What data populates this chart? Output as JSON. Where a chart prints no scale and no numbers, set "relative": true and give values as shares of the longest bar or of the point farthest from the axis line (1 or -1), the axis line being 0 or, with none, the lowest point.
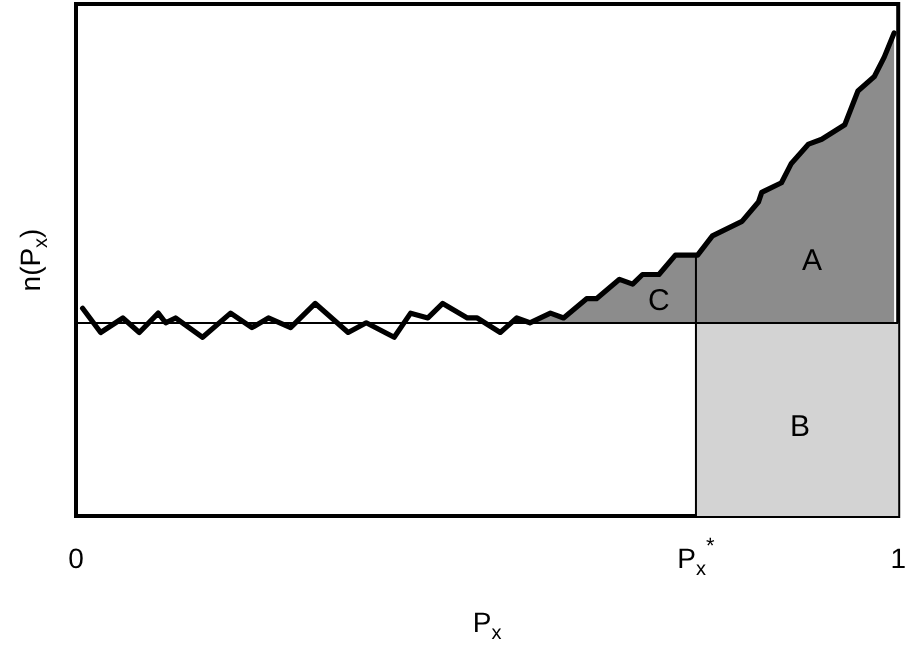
{
  "chart_data": {
    "type": "line",
    "relative": true,
    "xlabel": "P$_{x}$",
    "ylabel": "n(P$_{x}$)",
    "xlim": [
      0,
      1
    ],
    "xticks": [
      0,
      {
        "value": 0.754,
        "label": "P$_{x}$$^{*}$"
      },
      1
    ],
    "grid": false,
    "marker": "none",
    "series": [
      {
        "type": "histogram",
        "color": "#d3d3d3",
        "bins": [
          0.754,
          1
        ],
        "values": [
          0.4
        ]
      },
      {
        "type": "area",
        "color": "#8c8c8c",
        "x": [
          0.552,
          0.577,
          0.593,
          0.621,
          0.633,
          0.661,
          0.677,
          0.689,
          0.709,
          0.729,
          0.756,
          0.774,
          0.81,
          0.83,
          0.834,
          0.858,
          0.87,
          0.891,
          0.907,
          0.935,
          0.951,
          0.971,
          0.983,
          0.995
        ],
        "values": [
          0.4,
          0.42,
          0.41,
          0.45,
          0.45,
          0.49,
          0.48,
          0.5,
          0.5,
          0.54,
          0.54,
          0.58,
          0.61,
          0.65,
          0.67,
          0.69,
          0.73,
          0.77,
          0.78,
          0.81,
          0.88,
          0.91,
          0.95,
          1
        ]
      },
      {
        "color": "#000000",
        "x": [
          0.754,
          0.754
        ],
        "values": [
          0,
          0.54
        ]
      },
      {
        "color": "#000000",
        "x": [
          0.008,
          0.03,
          0.057,
          0.077,
          0.1,
          0.109,
          0.121,
          0.154,
          0.188,
          0.214,
          0.234,
          0.261,
          0.291,
          0.331,
          0.353,
          0.387,
          0.407,
          0.428,
          0.446,
          0.476,
          0.488,
          0.516,
          0.536,
          0.552,
          0.577,
          0.593,
          0.621,
          0.633,
          0.661,
          0.677,
          0.689,
          0.709,
          0.729,
          0.756,
          0.774,
          0.81,
          0.83,
          0.834,
          0.858,
          0.87,
          0.891,
          0.907,
          0.935,
          0.951,
          0.971,
          0.983,
          0.995
        ],
        "values": [
          0.43,
          0.38,
          0.41,
          0.38,
          0.42,
          0.4,
          0.41,
          0.37,
          0.42,
          0.39,
          0.41,
          0.39,
          0.44,
          0.38,
          0.4,
          0.37,
          0.42,
          0.41,
          0.44,
          0.41,
          0.41,
          0.38,
          0.41,
          0.4,
          0.42,
          0.41,
          0.45,
          0.45,
          0.49,
          0.48,
          0.5,
          0.5,
          0.54,
          0.54,
          0.58,
          0.61,
          0.65,
          0.67,
          0.69,
          0.73,
          0.77,
          0.78,
          0.81,
          0.88,
          0.91,
          0.95,
          1
        ]
      }
    ],
    "ref_lines": [
      {
        "axis": "y",
        "value": 0.4,
        "color": "#000000"
      }
    ],
    "annotations": [
      "A",
      "B",
      "C"
    ]
  }
}
